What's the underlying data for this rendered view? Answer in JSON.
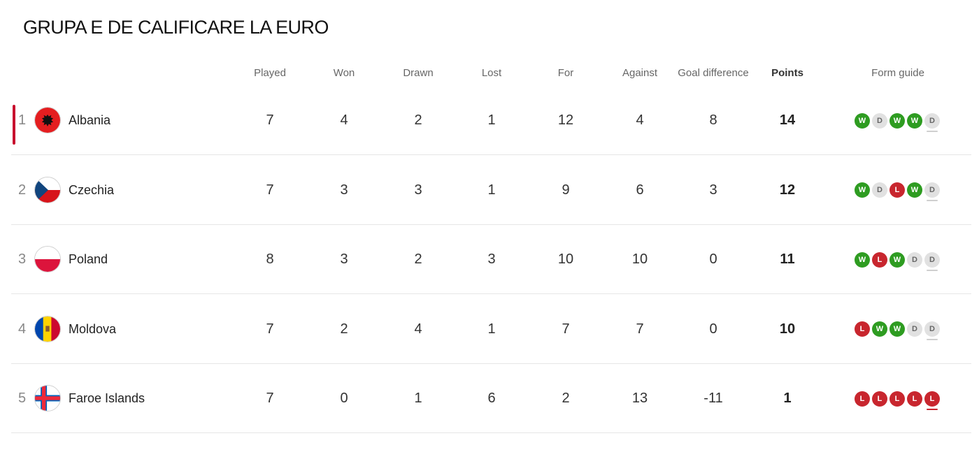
{
  "title": "GRUPA E DE CALIFICARE LA EURO",
  "columns": {
    "played": "Played",
    "won": "Won",
    "drawn": "Drawn",
    "lost": "Lost",
    "for": "For",
    "against": "Against",
    "goal_difference": "Goal difference",
    "points": "Points",
    "form_guide": "Form guide"
  },
  "colors": {
    "win": "#2e9c21",
    "loss": "#c8262e",
    "draw": "#e1e1e1",
    "leader_marker": "#c8102e"
  },
  "rows": [
    {
      "pos": "1",
      "team": "Albania",
      "flag_icon": "albania-flag-icon",
      "played": "7",
      "won": "4",
      "drawn": "2",
      "lost": "1",
      "for": "12",
      "against": "4",
      "gd": "8",
      "points": "14",
      "form": [
        "W",
        "D",
        "W",
        "W",
        "D"
      ]
    },
    {
      "pos": "2",
      "team": "Czechia",
      "flag_icon": "czechia-flag-icon",
      "played": "7",
      "won": "3",
      "drawn": "3",
      "lost": "1",
      "for": "9",
      "against": "6",
      "gd": "3",
      "points": "12",
      "form": [
        "W",
        "D",
        "L",
        "W",
        "D"
      ]
    },
    {
      "pos": "3",
      "team": "Poland",
      "flag_icon": "poland-flag-icon",
      "played": "8",
      "won": "3",
      "drawn": "2",
      "lost": "3",
      "for": "10",
      "against": "10",
      "gd": "0",
      "points": "11",
      "form": [
        "W",
        "L",
        "W",
        "D",
        "D"
      ]
    },
    {
      "pos": "4",
      "team": "Moldova",
      "flag_icon": "moldova-flag-icon",
      "played": "7",
      "won": "2",
      "drawn": "4",
      "lost": "1",
      "for": "7",
      "against": "7",
      "gd": "0",
      "points": "10",
      "form": [
        "L",
        "W",
        "W",
        "D",
        "D"
      ]
    },
    {
      "pos": "5",
      "team": "Faroe Islands",
      "flag_icon": "faroe-islands-flag-icon",
      "played": "7",
      "won": "0",
      "drawn": "1",
      "lost": "6",
      "for": "2",
      "against": "13",
      "gd": "-11",
      "points": "1",
      "form": [
        "L",
        "L",
        "L",
        "L",
        "L"
      ]
    }
  ]
}
